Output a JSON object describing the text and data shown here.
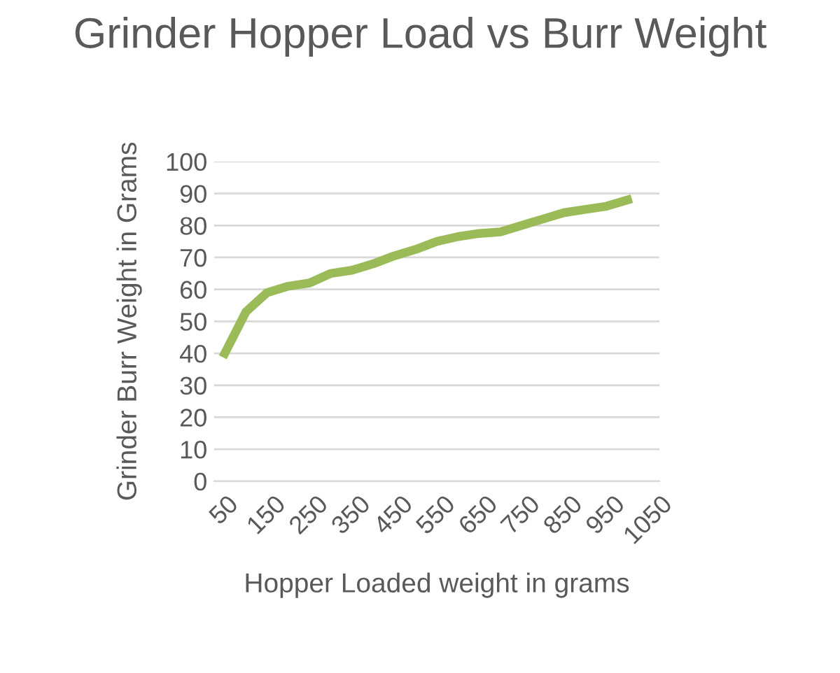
{
  "chart_data": {
    "type": "line",
    "title": "Grinder Hopper Load vs Burr Weight",
    "xlabel": "Hopper Loaded weight in grams",
    "ylabel": "Grinder Burr Weight in Grams",
    "categories": [
      "50",
      null,
      "150",
      null,
      "250",
      null,
      "350",
      null,
      "450",
      null,
      "550",
      null,
      "650",
      null,
      "750",
      null,
      "850",
      null,
      "950",
      null,
      "1050"
    ],
    "series": [
      {
        "color": "#9bbb59",
        "values": [
          40,
          53,
          59,
          61,
          62,
          65,
          66,
          68,
          70.5,
          72.5,
          75,
          76.5,
          77.5,
          78,
          80,
          82,
          84,
          85,
          86,
          88,
          null
        ]
      }
    ],
    "ylim": [
      0,
      100
    ],
    "yticks": [
      0,
      10,
      20,
      30,
      40,
      50,
      60,
      70,
      80,
      90,
      100
    ],
    "grid": "y",
    "marker": "none",
    "line_style": "solid"
  }
}
